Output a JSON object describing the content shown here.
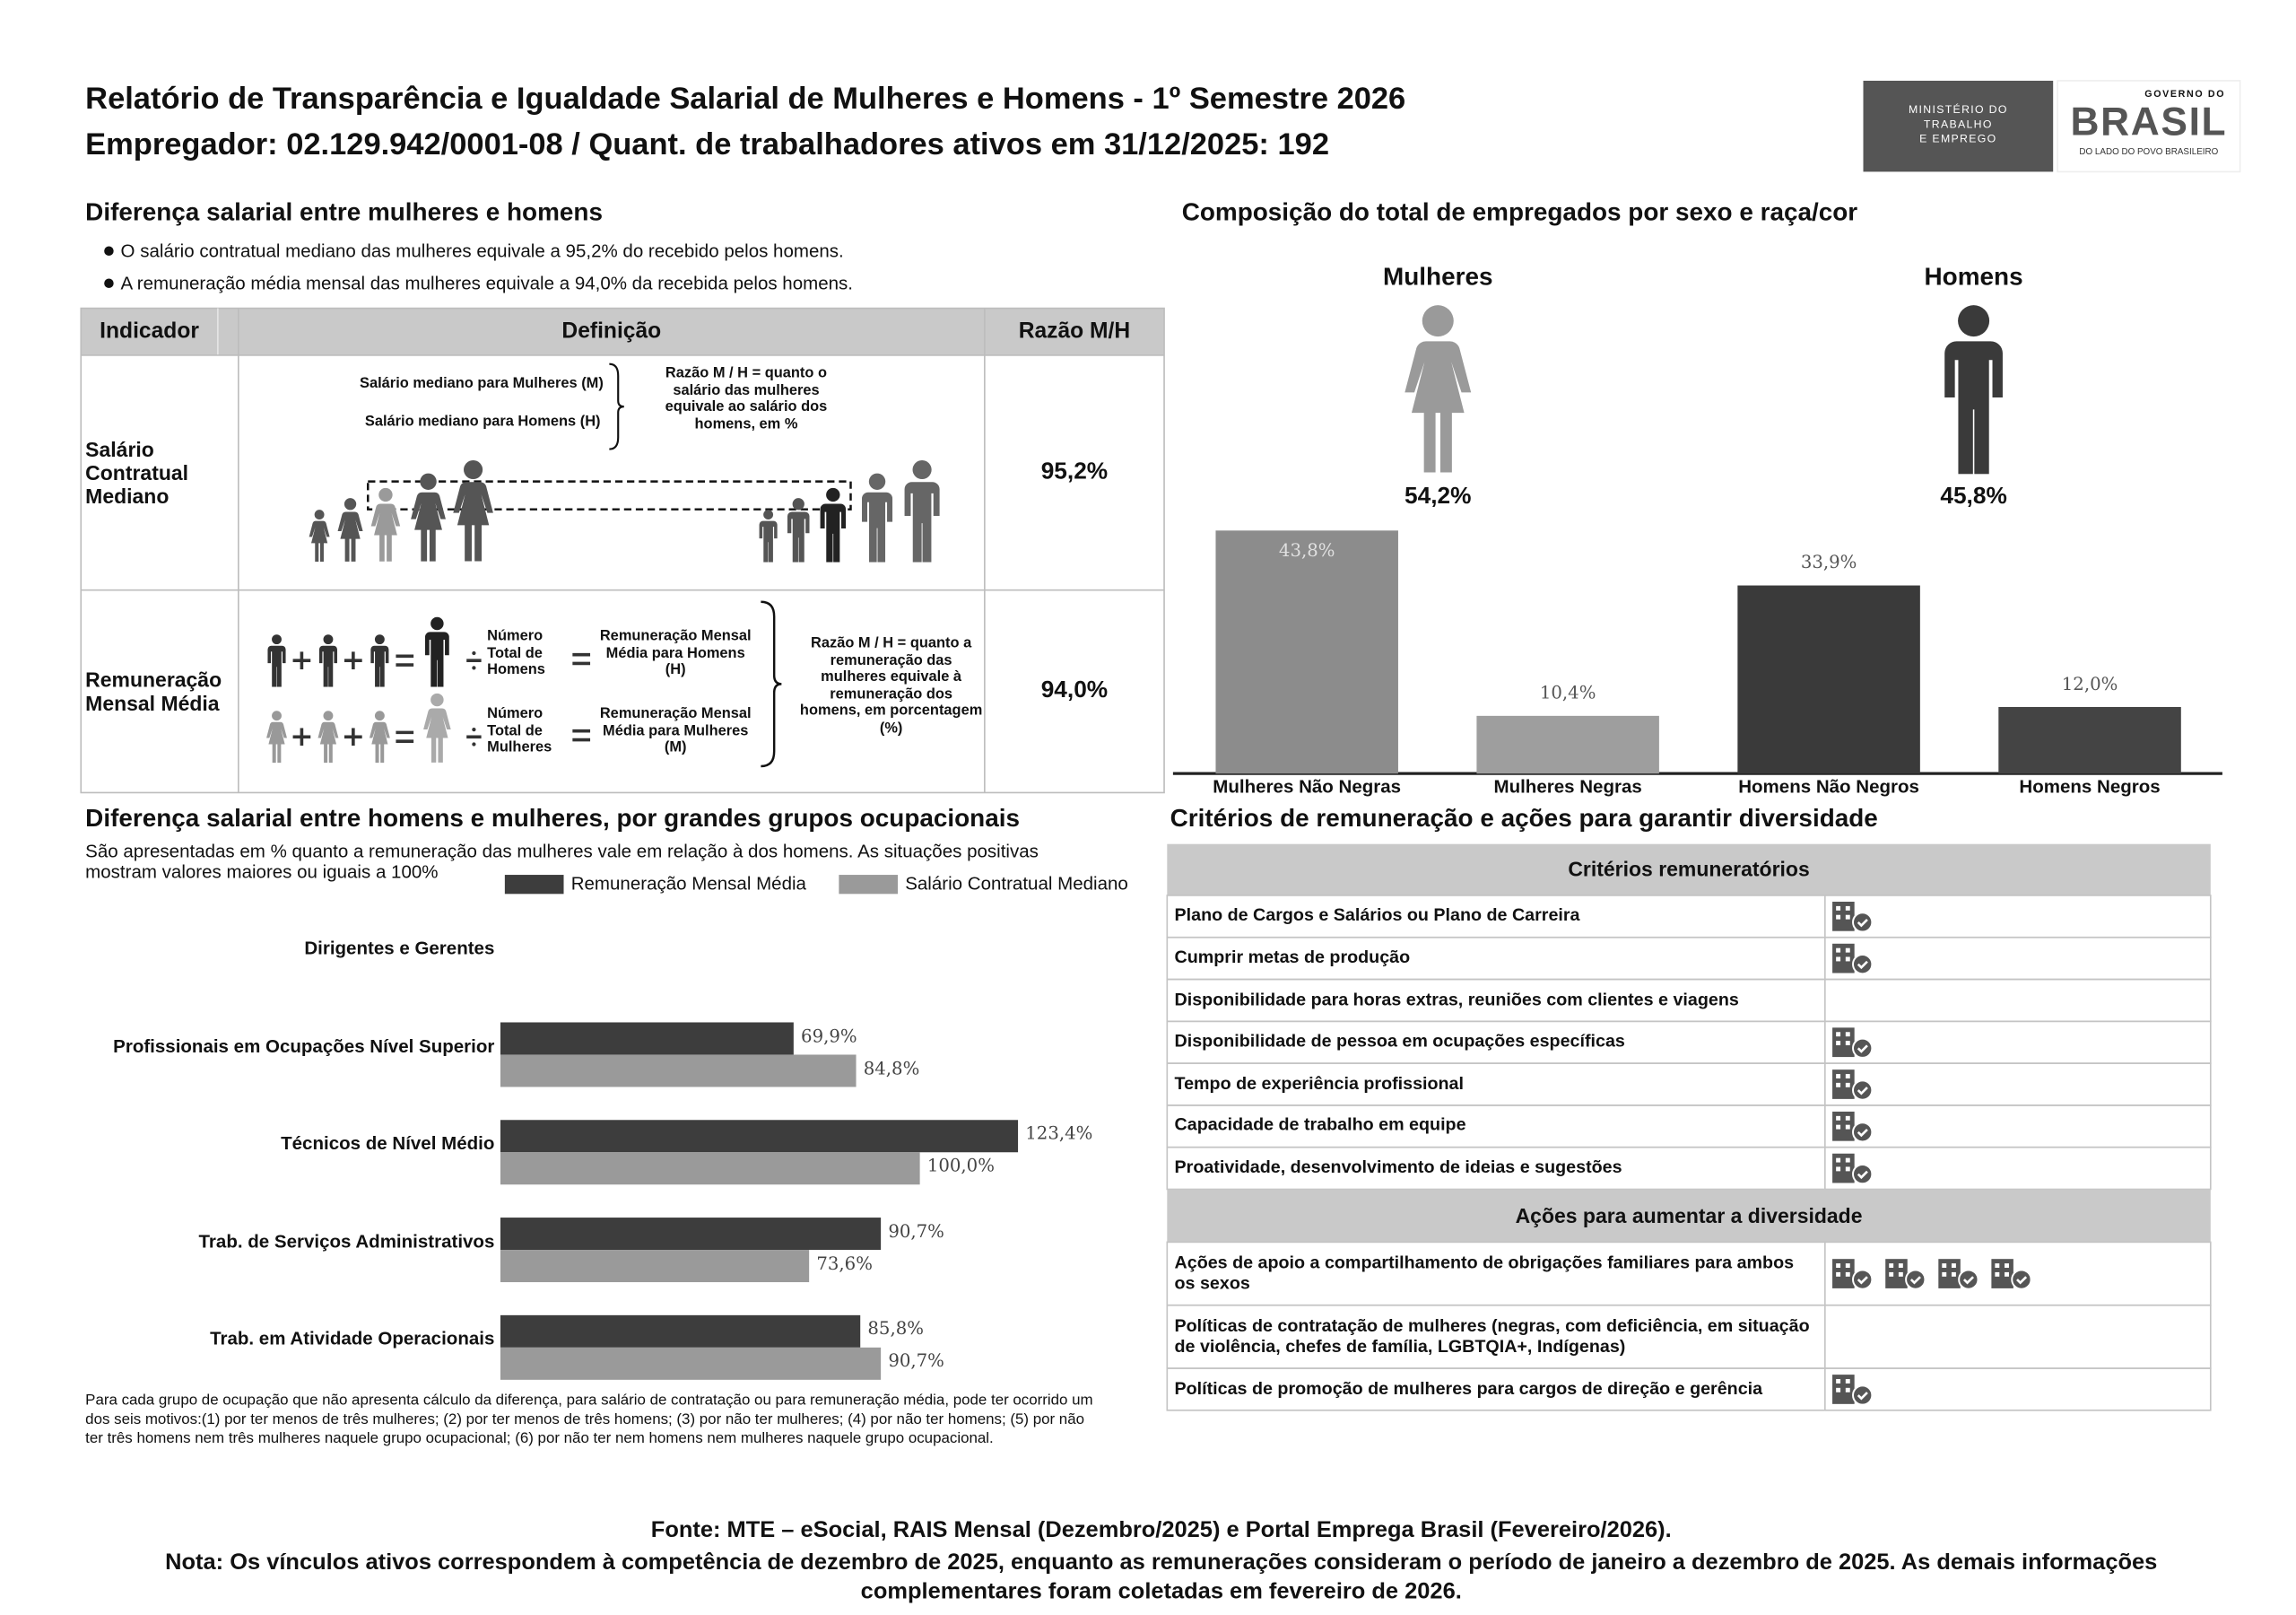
{
  "header": {
    "title": "Relatório de Transparência e Igualdade Salarial de Mulheres e Homens - 1º Semestre 2026",
    "subtitle": "Empregador: 02.129.942/0001-08 / Quant. de trabalhadores ativos em 31/12/2025: 192",
    "ministry_logo": [
      "MINISTÉRIO DO",
      "TRABALHO",
      "E EMPREGO"
    ],
    "government_logo": {
      "top": "GOVERNO DO",
      "brand": "BRASIL",
      "tagline": "DO LADO DO POVO BRASILEIRO"
    }
  },
  "salary_gap": {
    "title": "Diferença salarial entre mulheres e homens",
    "bullets": [
      "O salário contratual mediano das mulheres equivale a 95,2% do recebido pelos homens.",
      "A remuneração média mensal das mulheres equivale a 94,0% da recebida pelos homens."
    ],
    "table": {
      "headers": [
        "Indicador",
        "Definição",
        "Razão M/H"
      ],
      "rows": [
        {
          "indicator": "Salário Contratual Mediano",
          "definition": {
            "women": "Salário mediano para Mulheres (M)",
            "men": "Salário mediano para Homens (H)",
            "ratio_note": "Razão M / H = quanto o salário das mulheres equivale ao salário dos homens, em %"
          },
          "ratio": "95,2%"
        },
        {
          "indicator": "Remuneração Mensal Média",
          "definition": {
            "men_count": "Número Total de Homens",
            "men_mean": "Remuneração Mensal Média para Homens (H)",
            "women_count": "Número Total de Mulheres",
            "women_mean": "Remuneração Mensal Média para Mulheres (M)",
            "ratio_note": "Razão M / H = quanto a remuneração das mulheres equivale à remuneração dos homens, em porcentagem (%)"
          },
          "ratio": "94,0%"
        }
      ]
    }
  },
  "composition": {
    "title": "Composição do total de empregados por sexo e raça/cor",
    "groups": [
      {
        "label": "Mulheres",
        "share": "54,2%"
      },
      {
        "label": "Homens",
        "share": "45,8%"
      }
    ],
    "chart_data": {
      "type": "bar",
      "categories": [
        "Mulheres Não Negras",
        "Mulheres Negras",
        "Homens Não Negros",
        "Homens Negros"
      ],
      "values": [
        43.8,
        10.4,
        33.9,
        12.0
      ],
      "value_labels": [
        "43,8%",
        "10,4%",
        "33,9%",
        "12,0%"
      ],
      "colors": [
        "#8c8c8c",
        "#9e9e9e",
        "#3a3a3a",
        "#444444"
      ]
    }
  },
  "occupations": {
    "title": "Diferença salarial entre homens e mulheres, por grandes grupos ocupacionais",
    "description": "São apresentadas em % quanto a remuneração das mulheres vale em relação à dos homens. As situações positivas mostram valores maiores ou iguais a 100%",
    "chart_data": {
      "type": "barh",
      "categories": [
        "Dirigentes e Gerentes",
        "Profissionais em Ocupações Nível Superior",
        "Técnicos de Nível Médio",
        "Trab. de Serviços Administrativos",
        "Trab. em Atividade Operacionais"
      ],
      "series": [
        {
          "name": "Remuneração Mensal Média",
          "color": "#3d3d3d",
          "values": [
            null,
            69.9,
            123.4,
            90.7,
            85.8
          ],
          "value_labels": [
            null,
            "69,9%",
            "123,4%",
            "90,7%",
            "85,8%"
          ]
        },
        {
          "name": "Salário Contratual Mediano",
          "color": "#9a9a9a",
          "values": [
            null,
            84.8,
            100.0,
            73.6,
            90.7
          ],
          "value_labels": [
            null,
            "84,8%",
            "100,0%",
            "73,6%",
            "90,7%"
          ]
        }
      ]
    },
    "footnote": "Para cada grupo de ocupação que não apresenta cálculo da diferença, para salário de contratação ou para remuneração média, pode ter ocorrido um dos seis motivos:(1) por ter menos de três mulheres; (2) por ter menos de três homens; (3) por não ter mulheres; (4) por não ter homens; (5) por não ter três homens nem três mulheres naquele grupo ocupacional; (6) por não ter nem homens nem mulheres naquele grupo ocupacional."
  },
  "diversity": {
    "title": "Critérios de remuneração e ações para garantir diversidade",
    "sections": [
      {
        "heading": "Critérios remuneratórios",
        "rows": [
          {
            "text": "Plano de Cargos e Salários ou Plano de Carreira",
            "icons": 1
          },
          {
            "text": "Cumprir metas de produção",
            "icons": 1
          },
          {
            "text": "Disponibilidade para horas extras, reuniões com clientes e viagens",
            "icons": 0
          },
          {
            "text": "Disponibilidade de pessoa em ocupações específicas",
            "icons": 1
          },
          {
            "text": "Tempo de experiência profissional",
            "icons": 1
          },
          {
            "text": "Capacidade de trabalho em equipe",
            "icons": 1
          },
          {
            "text": "Proatividade, desenvolvimento de ideias e sugestões",
            "icons": 1
          }
        ]
      },
      {
        "heading": "Ações para aumentar a diversidade",
        "rows": [
          {
            "text": "Ações de apoio a compartilhamento de obrigações familiares para ambos os sexos",
            "icons": 4
          },
          {
            "text": "Políticas de contratação de mulheres (negras, com deficiência, em situação de violência, chefes de família, LGBTQIA+, Indígenas)",
            "icons": 0
          },
          {
            "text": "Políticas de promoção de mulheres para cargos de direção e gerência",
            "icons": 1
          }
        ]
      }
    ]
  },
  "footer": {
    "source": "Fonte: MTE – eSocial, RAIS Mensal (Dezembro/2025) e Portal Emprega Brasil (Fevereiro/2026).",
    "note": "Nota: Os vínculos ativos correspondem à competência de dezembro de 2025, enquanto as remunerações consideram o período de janeiro a dezembro de 2025. As demais informações complementares foram coletadas em fevereiro de 2026."
  }
}
